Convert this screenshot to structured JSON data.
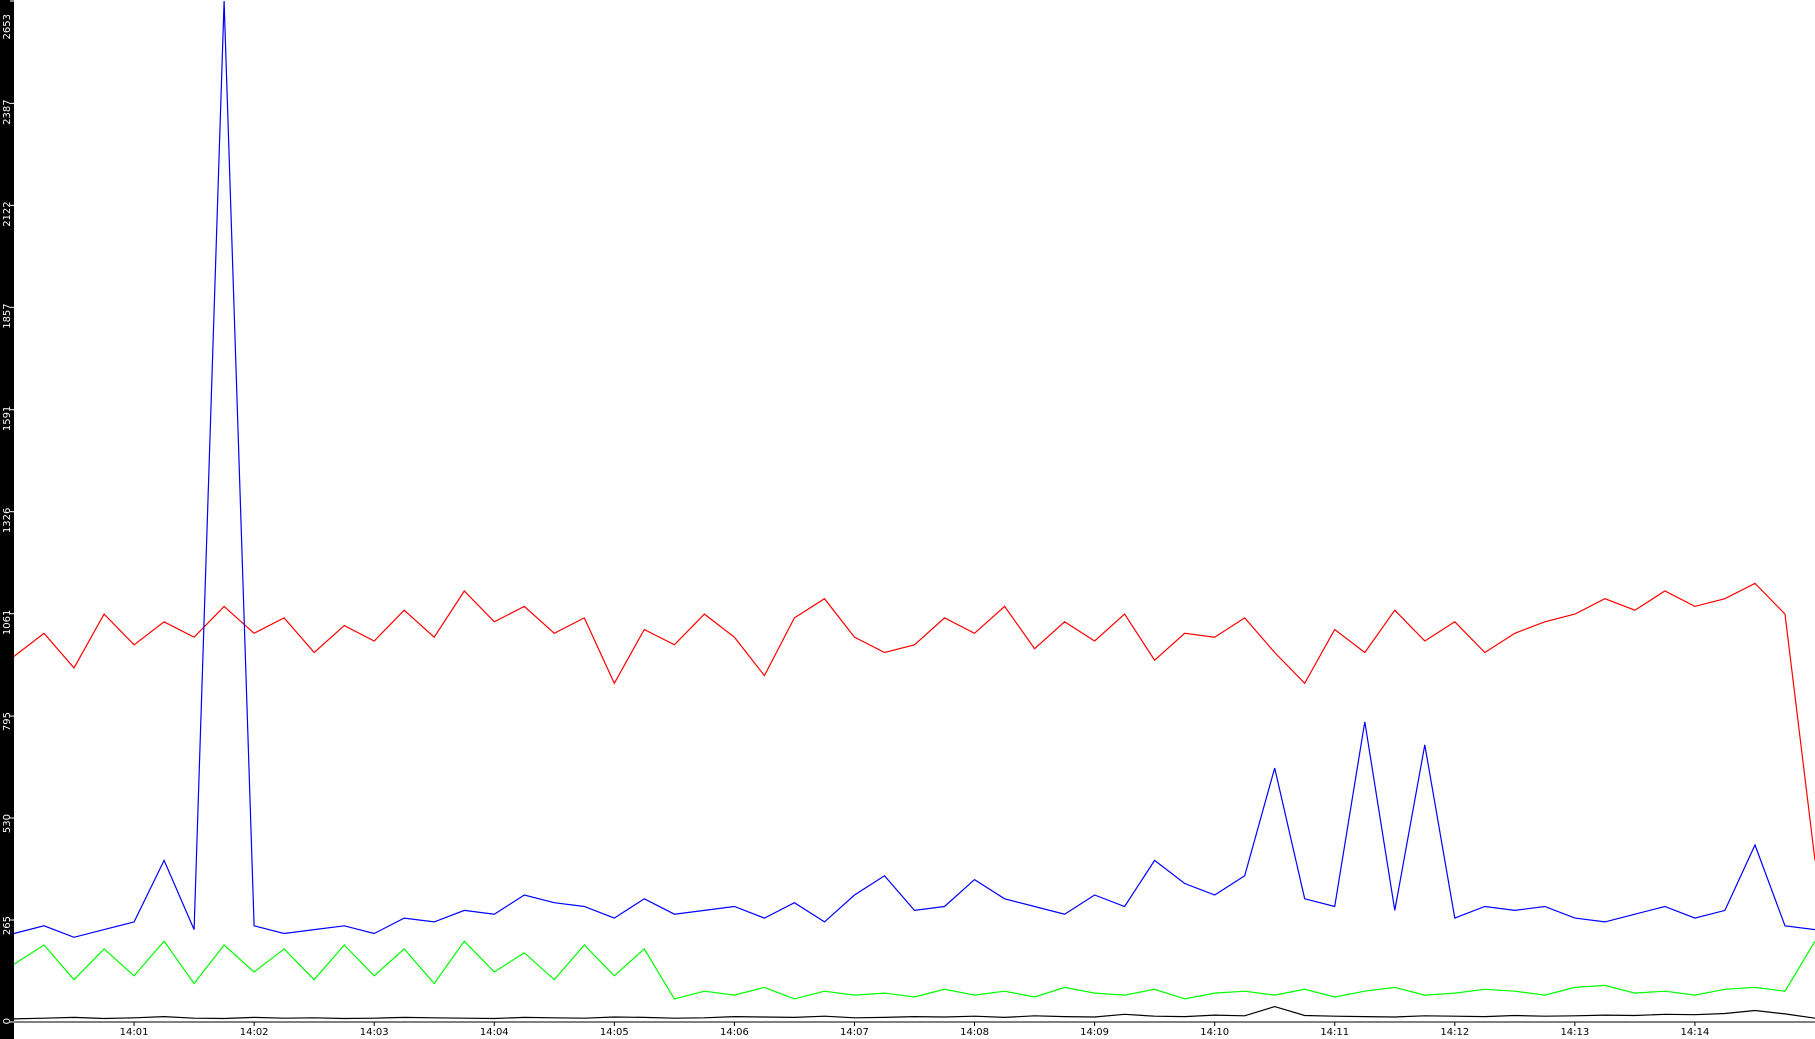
{
  "chart_data": {
    "type": "line",
    "categories": [
      null,
      null,
      null,
      null,
      "14:01",
      null,
      null,
      null,
      "14:02",
      null,
      null,
      null,
      "14:03",
      null,
      null,
      null,
      "14:04",
      null,
      null,
      null,
      "14:05",
      null,
      null,
      null,
      "14:06",
      null,
      null,
      null,
      "14:07",
      null,
      null,
      null,
      "14:08",
      null,
      null,
      null,
      "14:09",
      null,
      null,
      null,
      "14:10",
      null,
      null,
      null,
      "14:11",
      null,
      null,
      null,
      "14:12",
      null,
      null,
      null,
      "14:13",
      null,
      null,
      null,
      "14:14",
      null,
      null,
      null,
      null
    ],
    "series": [
      {
        "name": "red",
        "color": "#ff0000",
        "values": [
          950,
          1010,
          920,
          1060,
          980,
          1040,
          1000,
          1080,
          1010,
          1050,
          960,
          1030,
          990,
          1070,
          1000,
          1120,
          1040,
          1080,
          1010,
          1050,
          880,
          1020,
          980,
          1060,
          1000,
          900,
          1050,
          1100,
          1000,
          960,
          980,
          1050,
          1010,
          1080,
          970,
          1040,
          990,
          1060,
          940,
          1010,
          1000,
          1050,
          960,
          880,
          1020,
          960,
          1070,
          990,
          1040,
          960,
          1010,
          1040,
          1060,
          1100,
          1070,
          1120,
          1080,
          1100,
          1140,
          1060,
          420
        ]
      },
      {
        "name": "blue",
        "color": "#0000ff",
        "values": [
          230,
          250,
          220,
          240,
          260,
          420,
          240,
          2653,
          250,
          230,
          240,
          250,
          230,
          270,
          260,
          290,
          280,
          330,
          310,
          300,
          270,
          320,
          280,
          290,
          300,
          270,
          310,
          260,
          330,
          380,
          290,
          300,
          370,
          320,
          300,
          280,
          330,
          300,
          420,
          360,
          330,
          380,
          660,
          320,
          300,
          780,
          290,
          720,
          270,
          300,
          290,
          300,
          270,
          260,
          280,
          300,
          270,
          290,
          460,
          250,
          240
        ]
      },
      {
        "name": "green",
        "color": "#00ff00",
        "values": [
          150,
          200,
          110,
          190,
          120,
          210,
          100,
          200,
          130,
          190,
          110,
          200,
          120,
          190,
          100,
          210,
          130,
          180,
          110,
          200,
          120,
          190,
          60,
          80,
          70,
          90,
          60,
          80,
          70,
          75,
          65,
          85,
          70,
          80,
          65,
          90,
          75,
          70,
          85,
          60,
          75,
          80,
          70,
          85,
          65,
          80,
          90,
          70,
          75,
          85,
          80,
          70,
          90,
          95,
          75,
          80,
          70,
          85,
          90,
          80,
          210
        ]
      },
      {
        "name": "black",
        "color": "#000000",
        "values": [
          8,
          10,
          12,
          9,
          11,
          14,
          10,
          9,
          12,
          10,
          11,
          9,
          10,
          12,
          11,
          10,
          9,
          12,
          11,
          10,
          13,
          12,
          10,
          11,
          14,
          13,
          12,
          15,
          11,
          12,
          14,
          13,
          15,
          12,
          16,
          14,
          13,
          20,
          15,
          14,
          18,
          16,
          40,
          17,
          15,
          14,
          13,
          16,
          15,
          14,
          17,
          15,
          16,
          18,
          17,
          20,
          19,
          22,
          30,
          21,
          10
        ]
      }
    ],
    "ylim": [
      0,
      2653
    ],
    "yticks": [
      0,
      265,
      530,
      795,
      1061,
      1326,
      1591,
      1857,
      2122,
      2387,
      2653
    ]
  }
}
